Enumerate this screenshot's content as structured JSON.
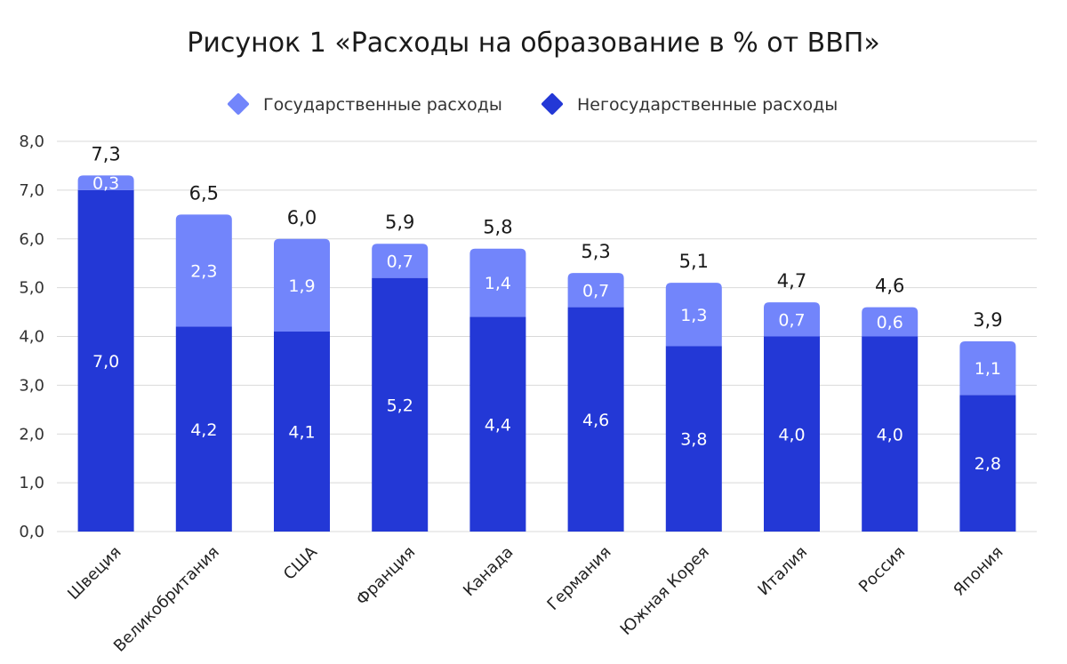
{
  "chart_data": {
    "type": "bar",
    "stacked": true,
    "title": "Рисунок 1 «Расходы на образование в % от ВВП»",
    "categories": [
      "Швеция",
      "Великобритания",
      "США",
      "Франция",
      "Канада",
      "Германия",
      "Южная Корея",
      "Италия",
      "Россия",
      "Япония"
    ],
    "series": [
      {
        "name": "Негосударственные расходы",
        "color": "#2338d6",
        "values": [
          7.0,
          4.2,
          4.1,
          5.2,
          4.4,
          4.6,
          3.8,
          4.0,
          4.0,
          2.8
        ],
        "labels": [
          "7,0",
          "4,2",
          "4,1",
          "5,2",
          "4,4",
          "4,6",
          "3,8",
          "4,0",
          "4,0",
          "2,8"
        ]
      },
      {
        "name": "Государственные расходы",
        "color": "#7285fb",
        "values": [
          0.3,
          2.3,
          1.9,
          0.7,
          1.4,
          0.7,
          1.3,
          0.7,
          0.6,
          1.1
        ],
        "labels": [
          "0,3",
          "2,3",
          "1,9",
          "0,7",
          "1,4",
          "0,7",
          "1,3",
          "0,7",
          "0,6",
          "1,1"
        ]
      }
    ],
    "totals": [
      "7,3",
      "6,5",
      "6,0",
      "5,9",
      "5,8",
      "5,3",
      "5,1",
      "4,7",
      "4,6",
      "3,9"
    ],
    "legend": [
      {
        "name": "Государственные расходы",
        "color": "#7285fb",
        "icon": "diamond-icon"
      },
      {
        "name": "Негосударственные расходы",
        "color": "#2338d6",
        "icon": "diamond-icon"
      }
    ],
    "legend_position": "top-center",
    "ylim": [
      0,
      8
    ],
    "y_ticks": [
      0,
      1,
      2,
      3,
      4,
      5,
      6,
      7,
      8
    ],
    "y_tick_labels": [
      "0,0",
      "1,0",
      "2,0",
      "3,0",
      "4,0",
      "5,0",
      "6,0",
      "7,0",
      "8,0"
    ],
    "grid": true,
    "xlabel": "",
    "ylabel": ""
  }
}
